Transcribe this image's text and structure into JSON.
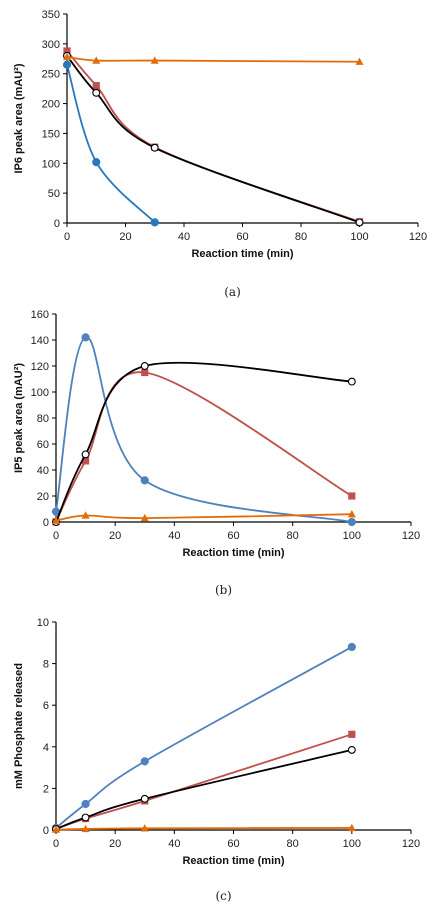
{
  "chart_data": [
    {
      "type": "line",
      "caption": "(a)",
      "xlabel": "Reaction time (min)",
      "ylabel": "IP6 peak area (mAU²)",
      "xlim": [
        0,
        120
      ],
      "ylim": [
        0,
        350
      ],
      "xticks": [
        "0",
        "20",
        "40",
        "60",
        "80",
        "100",
        "120"
      ],
      "yticks": [
        "0",
        "50",
        "100",
        "150",
        "200",
        "250",
        "300",
        "350"
      ],
      "grid": false,
      "series": [
        {
          "marker": "circle-filled",
          "color": "#2878bd",
          "points": [
            [
              0,
              265
            ],
            [
              10,
              102
            ],
            [
              30,
              1
            ]
          ]
        },
        {
          "marker": "square",
          "color": "#c0504d",
          "points": [
            [
              0,
              288
            ],
            [
              10,
              230
            ],
            [
              30,
              127
            ],
            [
              100,
              2
            ]
          ]
        },
        {
          "marker": "circle-open",
          "color": "#000000",
          "points": [
            [
              0,
              280
            ],
            [
              10,
              218
            ],
            [
              30,
              126
            ],
            [
              100,
              1
            ]
          ]
        },
        {
          "marker": "triangle",
          "color": "#e36c0a",
          "points": [
            [
              0,
              278
            ],
            [
              10,
              272
            ],
            [
              30,
              272
            ],
            [
              100,
              270
            ]
          ]
        }
      ]
    },
    {
      "type": "line",
      "caption": "(b)",
      "xlabel": "Reaction time (min)",
      "ylabel": "IP5 peak area (mAU²)",
      "xlim": [
        0,
        120
      ],
      "ylim": [
        0,
        160
      ],
      "xticks": [
        "0",
        "20",
        "40",
        "60",
        "80",
        "100",
        "120"
      ],
      "yticks": [
        "0",
        "20",
        "40",
        "60",
        "80",
        "100",
        "120",
        "140",
        "160"
      ],
      "grid": false,
      "series": [
        {
          "marker": "circle-filled",
          "color": "#4f81bd",
          "points": [
            [
              0,
              8
            ],
            [
              10,
              142
            ],
            [
              30,
              32
            ],
            [
              100,
              0
            ]
          ]
        },
        {
          "marker": "square",
          "color": "#c0504d",
          "points": [
            [
              0,
              0
            ],
            [
              10,
              47
            ],
            [
              30,
              115
            ],
            [
              100,
              20
            ]
          ]
        },
        {
          "marker": "circle-open",
          "color": "#000000",
          "points": [
            [
              0,
              0
            ],
            [
              10,
              52
            ],
            [
              30,
              120
            ],
            [
              100,
              108
            ]
          ]
        },
        {
          "marker": "triangle",
          "color": "#e36c0a",
          "points": [
            [
              0,
              1
            ],
            [
              10,
              5
            ],
            [
              30,
              3
            ],
            [
              100,
              6
            ]
          ]
        }
      ]
    },
    {
      "type": "line",
      "caption": "(c)",
      "xlabel": "Reaction time (min)",
      "ylabel": "mM Phosphate released",
      "xlim": [
        0,
        120
      ],
      "ylim": [
        0,
        10
      ],
      "xticks": [
        "0",
        "20",
        "40",
        "60",
        "80",
        "100",
        "120"
      ],
      "yticks": [
        "0",
        "2",
        "4",
        "6",
        "8",
        "10"
      ],
      "grid": false,
      "series": [
        {
          "marker": "circle-filled",
          "color": "#4f81bd",
          "points": [
            [
              0,
              0.1
            ],
            [
              10,
              1.25
            ],
            [
              30,
              3.3
            ],
            [
              100,
              8.8
            ]
          ]
        },
        {
          "marker": "square",
          "color": "#c0504d",
          "points": [
            [
              0,
              0.05
            ],
            [
              10,
              0.55
            ],
            [
              30,
              1.4
            ],
            [
              100,
              4.6
            ]
          ]
        },
        {
          "marker": "circle-open",
          "color": "#000000",
          "points": [
            [
              0,
              0.05
            ],
            [
              10,
              0.6
            ],
            [
              30,
              1.5
            ],
            [
              100,
              3.85
            ]
          ]
        },
        {
          "marker": "triangle",
          "color": "#e36c0a",
          "points": [
            [
              0,
              0.02
            ],
            [
              10,
              0.05
            ],
            [
              30,
              0.08
            ],
            [
              100,
              0.1
            ]
          ]
        }
      ]
    }
  ]
}
